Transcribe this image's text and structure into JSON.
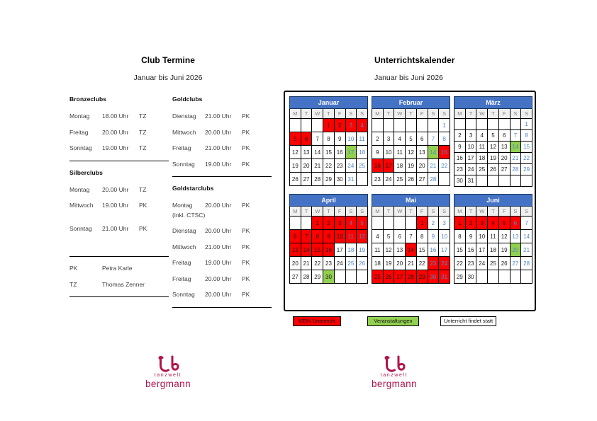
{
  "club_termine": {
    "title": "Club Termine",
    "subtitle": "Januar bis Juni 2026",
    "column1": {
      "sections": [
        {
          "heading": "Bronzeclubs",
          "rows": [
            {
              "day": "Montag",
              "time": "18.00 Uhr",
              "teacher": "TZ"
            },
            {
              "day": "Freitag",
              "time": "20.00 Uhr",
              "teacher": "TZ"
            },
            {
              "day": "Sonntag",
              "time": "19.00 Uhr",
              "teacher": "TZ"
            }
          ],
          "gap_before_divider": false
        },
        {
          "heading": "Silberclubs",
          "rows": [
            {
              "day": "Montag",
              "time": "20.00 Uhr",
              "teacher": "TZ"
            },
            {
              "day": "Mittwoch",
              "time": "19.00 Uhr",
              "teacher": "PK",
              "gap_after": true
            },
            {
              "day": "Sonntag",
              "time": "21.00 Uhr",
              "teacher": "PK"
            }
          ],
          "gap_before_divider": true
        }
      ],
      "abbreviations": [
        {
          "abbr": "PK",
          "name": "Petra Karle"
        },
        {
          "abbr": "TZ",
          "name": "Thomas Zenner"
        }
      ]
    },
    "column2": {
      "sections": [
        {
          "heading": "Goldclubs",
          "rows": [
            {
              "day": "Dienstag",
              "time": "21.00 Uhr",
              "teacher": "PK"
            },
            {
              "day": "Mittwoch",
              "time": "20.00 Uhr",
              "teacher": "PK"
            },
            {
              "day": "Freitag",
              "time": "21.00 Uhr",
              "teacher": "PK"
            },
            {
              "day": "Sonntag",
              "time": "19.00 Uhr",
              "teacher": "PK"
            }
          ],
          "gap_before_divider": false
        },
        {
          "heading": "Goldstarclubs",
          "rows": [
            {
              "day": "Montag",
              "time": "20.00 Uhr",
              "teacher": "PK",
              "note": "(inkl. CTSC)"
            },
            {
              "day": "Dienstag",
              "time": "20.00 Uhr",
              "teacher": "PK"
            },
            {
              "day": "Mittwoch",
              "time": "21.00 Uhr",
              "teacher": "PK"
            },
            {
              "day": "Freitag",
              "time": "19.00 Uhr",
              "teacher": "PK"
            },
            {
              "day": "Freitag",
              "time": "20.00 Uhr",
              "teacher": "PK"
            },
            {
              "day": "Sonntag",
              "time": "20.00 Uhr",
              "teacher": "PK"
            }
          ],
          "gap_before_divider": false
        }
      ]
    }
  },
  "unterrichtskalender": {
    "title": "Unterrichtskalender",
    "subtitle": "Januar bis Juni 2026",
    "day_headers": [
      "M",
      "T",
      "W",
      "T",
      "F",
      "S",
      "S"
    ],
    "months": [
      {
        "name": "Januar",
        "compact": false,
        "weeks": [
          [
            null,
            null,
            null,
            1,
            2,
            3,
            4
          ],
          [
            5,
            6,
            7,
            8,
            9,
            10,
            11
          ],
          [
            12,
            13,
            14,
            15,
            16,
            17,
            18
          ],
          [
            19,
            20,
            21,
            22,
            23,
            24,
            25
          ],
          [
            26,
            27,
            28,
            29,
            30,
            31,
            null
          ]
        ],
        "red": [
          1,
          2,
          3,
          4,
          5,
          6
        ],
        "green": [
          17
        ]
      },
      {
        "name": "Februar",
        "compact": false,
        "weeks": [
          [
            null,
            null,
            null,
            null,
            null,
            null,
            1
          ],
          [
            2,
            3,
            4,
            5,
            6,
            7,
            8
          ],
          [
            9,
            10,
            11,
            12,
            13,
            14,
            15
          ],
          [
            16,
            17,
            18,
            19,
            20,
            21,
            22
          ],
          [
            23,
            24,
            25,
            26,
            27,
            28,
            null
          ]
        ],
        "red": [
          15,
          16,
          17
        ],
        "green": [
          14
        ]
      },
      {
        "name": "März",
        "compact": true,
        "weeks": [
          [
            null,
            null,
            null,
            null,
            null,
            null,
            1
          ],
          [
            2,
            3,
            4,
            5,
            6,
            7,
            8
          ],
          [
            9,
            10,
            11,
            12,
            13,
            14,
            15
          ],
          [
            16,
            17,
            18,
            19,
            20,
            21,
            22
          ],
          [
            23,
            24,
            25,
            26,
            27,
            28,
            29
          ],
          [
            30,
            31,
            null,
            null,
            null,
            null,
            null
          ]
        ],
        "red": [],
        "green": [
          14
        ]
      },
      {
        "name": "April",
        "compact": false,
        "weeks": [
          [
            null,
            null,
            1,
            2,
            3,
            4,
            5
          ],
          [
            6,
            7,
            8,
            9,
            10,
            11,
            12
          ],
          [
            13,
            14,
            15,
            16,
            17,
            18,
            19
          ],
          [
            20,
            21,
            22,
            23,
            24,
            25,
            26
          ],
          [
            27,
            28,
            29,
            30,
            null,
            null,
            null
          ]
        ],
        "red": [
          1,
          2,
          3,
          4,
          5,
          6,
          7,
          8,
          9,
          10,
          11,
          12,
          13,
          14,
          15,
          16
        ],
        "green": [
          30
        ]
      },
      {
        "name": "Mai",
        "compact": false,
        "weeks": [
          [
            null,
            null,
            null,
            null,
            1,
            2,
            3
          ],
          [
            4,
            5,
            6,
            7,
            8,
            9,
            10
          ],
          [
            11,
            12,
            13,
            14,
            15,
            16,
            17
          ],
          [
            18,
            19,
            20,
            21,
            22,
            23,
            24
          ],
          [
            25,
            26,
            27,
            28,
            29,
            30,
            31
          ]
        ],
        "red": [
          1,
          14,
          23,
          24,
          25,
          26,
          27,
          28,
          29,
          30,
          31
        ],
        "green": []
      },
      {
        "name": "Juni",
        "compact": false,
        "weeks": [
          [
            1,
            2,
            3,
            4,
            5,
            6,
            7
          ],
          [
            8,
            9,
            10,
            11,
            12,
            13,
            14
          ],
          [
            15,
            16,
            17,
            18,
            19,
            20,
            21
          ],
          [
            22,
            23,
            24,
            25,
            26,
            27,
            28
          ],
          [
            29,
            30,
            null,
            null,
            null,
            null,
            null
          ]
        ],
        "red": [
          1,
          2,
          3,
          4,
          5,
          6
        ],
        "green": [
          20
        ]
      }
    ],
    "legend": [
      {
        "label": "KEIN Unterricht",
        "color": "#FF0000"
      },
      {
        "label": "Veranstaltungen",
        "color": "#92D050"
      },
      {
        "label": "Unterricht findet statt",
        "color": "#FFFFFF"
      }
    ]
  },
  "logo": {
    "line1": "tanzwelt",
    "line2": "bergmann",
    "color": "#B1134B"
  },
  "colors": {
    "header_blue": "#4472C4",
    "weekend_blue": "#4E86C6",
    "kein_unterricht_red": "#FF0000",
    "veranstaltung_green": "#92D050"
  }
}
